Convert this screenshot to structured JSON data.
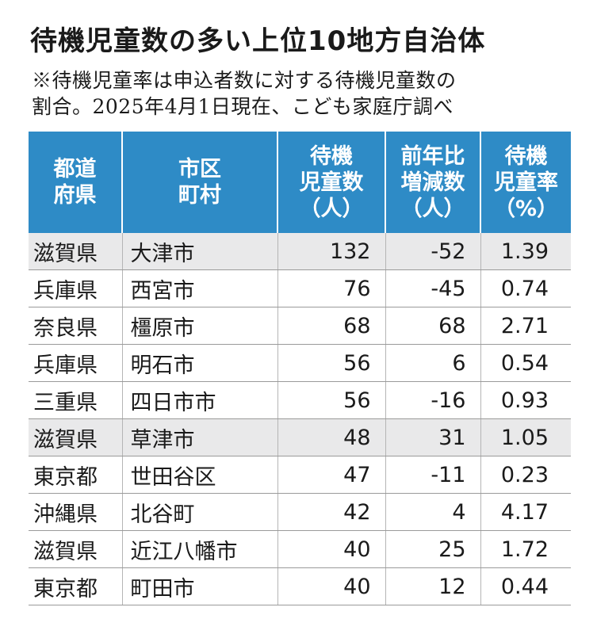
{
  "title": "待機児童数の多い上位10地方自治体",
  "note_line1": "※待機児童率は申込者数に対する待機児童数の",
  "note_line2": "割合。2025年4月1日現在、こども家庭庁調べ",
  "headers": [
    [
      "都道",
      "府県"
    ],
    [
      "市区",
      "町村"
    ],
    [
      "待機",
      "児童数",
      "（人）"
    ],
    [
      "前年比",
      "増減数",
      "（人）"
    ],
    [
      "待機",
      "児童率",
      "（%）"
    ]
  ],
  "rows": [
    {
      "pref": "滋賀県",
      "city": "大津市",
      "count": "132",
      "change": "-52",
      "rate": "1.39"
    },
    {
      "pref": "兵庫県",
      "city": "西宮市",
      "count": "76",
      "change": "-45",
      "rate": "0.74"
    },
    {
      "pref": "奈良県",
      "city": "橿原市",
      "count": "68",
      "change": "68",
      "rate": "2.71"
    },
    {
      "pref": "兵庫県",
      "city": "明石市",
      "count": "56",
      "change": "6",
      "rate": "0.54"
    },
    {
      "pref": "三重県",
      "city": "四日市市",
      "count": "56",
      "change": "-16",
      "rate": "0.93"
    },
    {
      "pref": "滋賀県",
      "city": "草津市",
      "count": "48",
      "change": "31",
      "rate": "1.05"
    },
    {
      "pref": "東京都",
      "city": "世田谷区",
      "count": "47",
      "change": "-11",
      "rate": "0.23"
    },
    {
      "pref": "沖縄県",
      "city": "北谷町",
      "count": "42",
      "change": "4",
      "rate": "4.17"
    },
    {
      "pref": "滋賀県",
      "city": "近江八幡市",
      "count": "40",
      "change": "25",
      "rate": "1.72"
    },
    {
      "pref": "東京都",
      "city": "町田市",
      "count": "40",
      "change": "12",
      "rate": "0.44"
    }
  ],
  "colors": {
    "header_bg": "#2e8bc6",
    "row_shade": "#e9e9ea"
  }
}
